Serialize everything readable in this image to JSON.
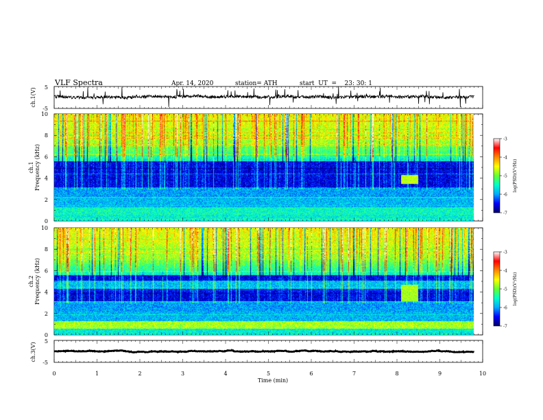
{
  "chart_data": {
    "type": "heatmap",
    "header": {
      "title": "VLF Spectra",
      "date": "Apr. 14, 2020",
      "station": "station= ATH",
      "start": "start  UT  =    23: 30: 1"
    },
    "x": {
      "label": "Time (min)",
      "range": [
        0,
        10
      ],
      "ticks": [
        "0",
        "1",
        "2",
        "3",
        "4",
        "5",
        "6",
        "7",
        "8",
        "9",
        "10"
      ],
      "data_end_min": 9.8
    },
    "panels": [
      {
        "id": "ch1-waveform",
        "kind": "line",
        "ylabel": "ch.1(V)",
        "ylim": [
          -5,
          5
        ],
        "ticks": [
          "5",
          "-5"
        ],
        "baseline_volts": 0.3,
        "noise_volts": 0.7
      },
      {
        "id": "ch1-spectrogram",
        "kind": "spectrogram",
        "ylabel_line1": "ch.1",
        "ylabel_line2": "Frequency (kHz)",
        "ylim": [
          0,
          10
        ],
        "ticks": [
          "0",
          "2",
          "4",
          "6",
          "8",
          "10"
        ]
      },
      {
        "id": "ch2-spectrogram",
        "kind": "spectrogram",
        "ylabel_line1": "ch.2",
        "ylabel_line2": "Frequency (kHz)",
        "ylim": [
          0,
          10
        ],
        "ticks": [
          "0",
          "2",
          "4",
          "6",
          "8",
          "10"
        ]
      },
      {
        "id": "ch3-waveform",
        "kind": "line",
        "ylabel": "ch.3(V)",
        "ylim": [
          -5,
          5
        ],
        "ticks": [
          "5",
          "-5"
        ],
        "baseline_volts": 0,
        "noise_volts": 0.1
      }
    ],
    "colorbar": {
      "label": "log(PSD)(V²/Hz)",
      "range": [
        -7,
        -3
      ],
      "ticks": [
        "-3",
        "-4",
        "-5",
        "-6",
        "-7"
      ],
      "colormap": [
        "#000066",
        "#0000ff",
        "#00aaff",
        "#00ffcc",
        "#66ff33",
        "#ffff00",
        "#ff8800",
        "#ff0000",
        "#ffffff"
      ]
    }
  }
}
